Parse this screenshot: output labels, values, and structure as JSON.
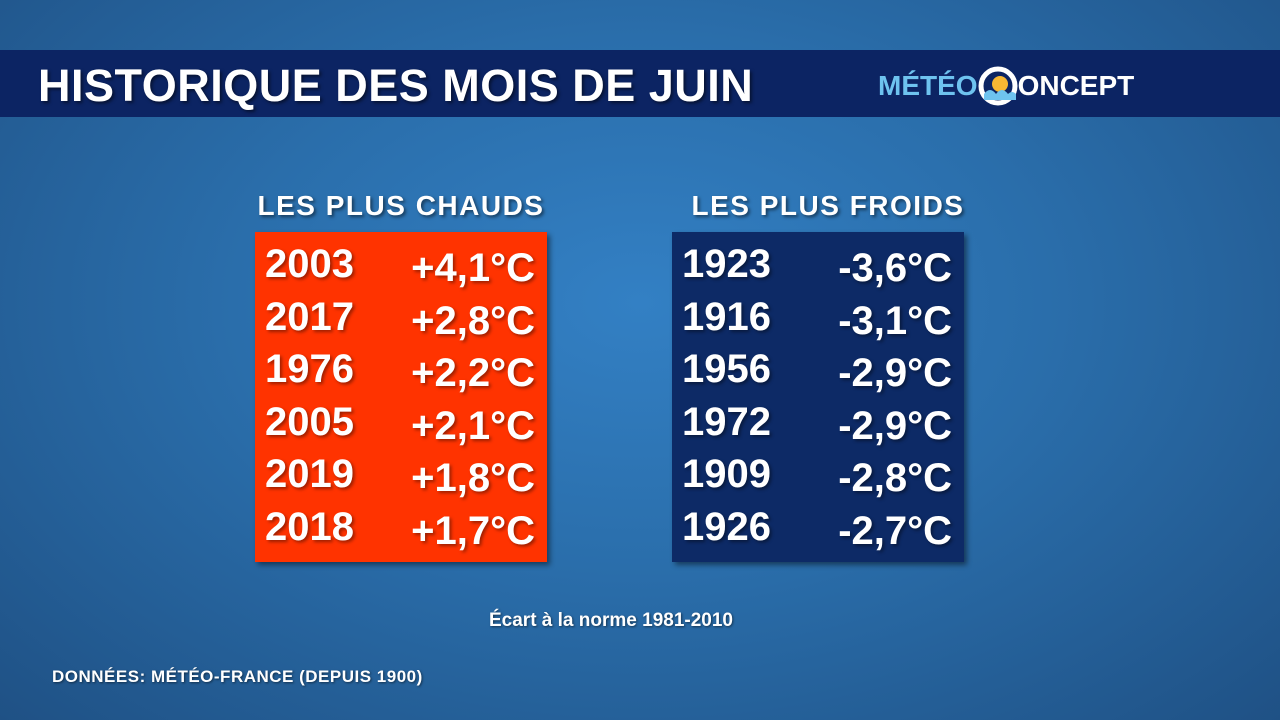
{
  "header": {
    "title": "HISTORIQUE DES MOIS DE JUIN",
    "logo": [
      "MÉTÉO",
      "ONCEPT"
    ]
  },
  "tables": [
    {
      "heading": "LES PLUS CHAUDS",
      "rows": [
        [
          "2003",
          "+4,1°C"
        ],
        [
          "2017",
          "+2,8°C"
        ],
        [
          "1976",
          "+2,2°C"
        ],
        [
          "2005",
          "+2,1°C"
        ],
        [
          "2019",
          "+1,8°C"
        ],
        [
          "2018",
          "+1,7°C"
        ]
      ]
    },
    {
      "heading": "LES PLUS FROIDS",
      "rows": [
        [
          "1923",
          "-3,6°C"
        ],
        [
          "1916",
          "-3,1°C"
        ],
        [
          "1956",
          "-2,9°C"
        ],
        [
          "1972",
          "-2,9°C"
        ],
        [
          "1909",
          "-2,8°C"
        ],
        [
          "1926",
          "-2,7°C"
        ]
      ]
    }
  ],
  "note": "Écart à la norme 1981-2010",
  "source": "DONNÉES: MÉTÉO-FRANCE (DEPUIS 1900)"
}
